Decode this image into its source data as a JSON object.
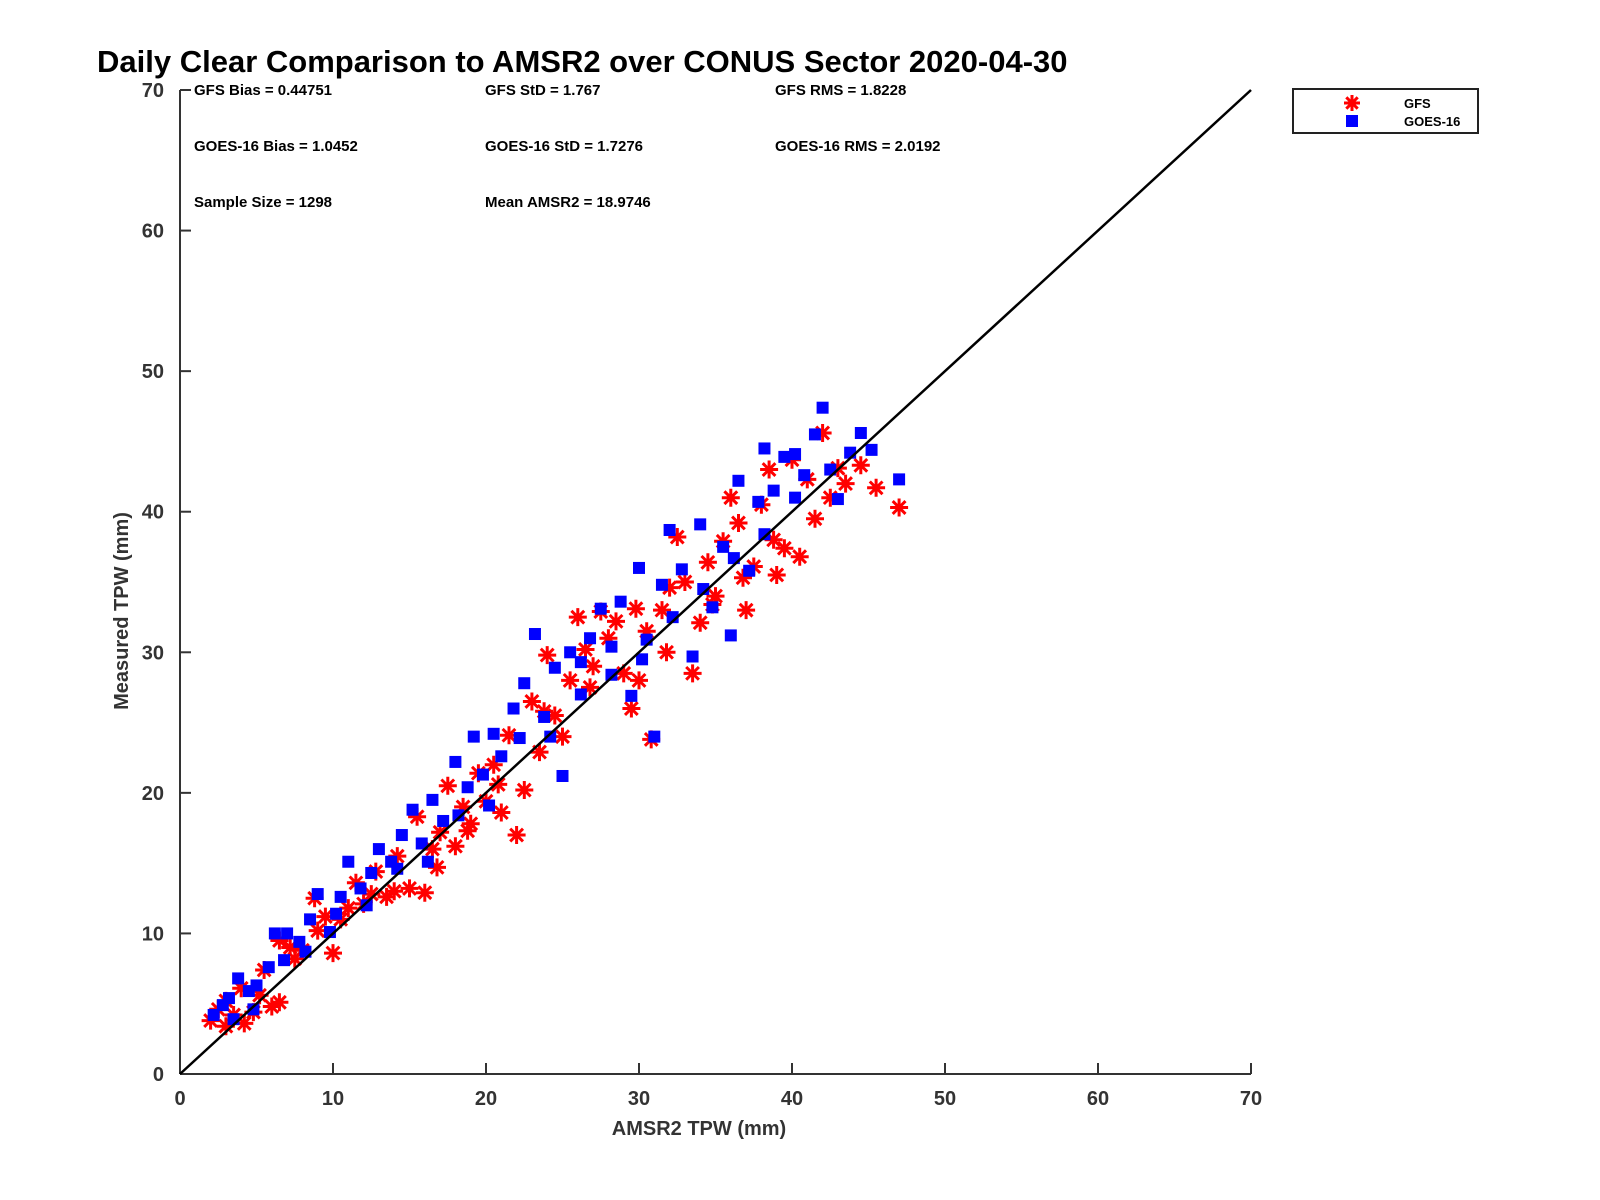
{
  "chart_data": {
    "type": "scatter",
    "title": "Daily Clear Comparison to AMSR2 over CONUS Sector 2020-04-30",
    "xlabel": "AMSR2 TPW (mm)",
    "ylabel": "Measured TPW (mm)",
    "xlim": [
      0,
      70
    ],
    "ylim": [
      0,
      70
    ],
    "xticks": [
      "0",
      "10",
      "20",
      "30",
      "40",
      "50",
      "60",
      "70"
    ],
    "yticks": [
      "0",
      "10",
      "20",
      "30",
      "40",
      "50",
      "60",
      "70"
    ],
    "grid": false,
    "legend_position": "outside-top-right",
    "reference_line": {
      "x": [
        0,
        70
      ],
      "y": [
        0,
        70
      ],
      "color": "#000000"
    },
    "stats": [
      [
        "GFS Bias = 0.44751",
        "GFS StD = 1.767",
        "GFS RMS = 1.8228"
      ],
      [
        "GOES-16 Bias = 1.0452",
        "GOES-16 StD = 1.7276",
        "GOES-16 RMS = 2.0192"
      ],
      [
        "Sample Size = 1298",
        "Mean AMSR2 = 18.9746"
      ]
    ],
    "series": [
      {
        "name": "GFS",
        "marker": "asterisk",
        "color": "#ff0000",
        "points": [
          [
            2.0,
            3.8
          ],
          [
            2.5,
            4.6
          ],
          [
            3.0,
            3.4
          ],
          [
            3.5,
            4.2
          ],
          [
            4.2,
            3.6
          ],
          [
            4.8,
            4.4
          ],
          [
            5.2,
            5.6
          ],
          [
            6.0,
            4.8
          ],
          [
            6.5,
            5.1
          ],
          [
            6.5,
            9.5
          ],
          [
            7.2,
            9.0
          ],
          [
            8.0,
            8.8
          ],
          [
            8.8,
            12.5
          ],
          [
            9.5,
            11.2
          ],
          [
            10.0,
            8.6
          ],
          [
            10.5,
            11.0
          ],
          [
            11.0,
            11.8
          ],
          [
            11.5,
            13.6
          ],
          [
            12.0,
            12.1
          ],
          [
            12.8,
            14.4
          ],
          [
            13.5,
            12.6
          ],
          [
            14.2,
            15.5
          ],
          [
            15.0,
            13.2
          ],
          [
            15.5,
            18.3
          ],
          [
            16.0,
            12.9
          ],
          [
            16.5,
            16.0
          ],
          [
            17.0,
            17.2
          ],
          [
            17.5,
            20.5
          ],
          [
            18.0,
            16.2
          ],
          [
            18.5,
            19.0
          ],
          [
            19.0,
            17.8
          ],
          [
            19.5,
            21.4
          ],
          [
            20.0,
            19.4
          ],
          [
            20.5,
            22.0
          ],
          [
            21.0,
            18.6
          ],
          [
            21.5,
            24.1
          ],
          [
            22.0,
            17.0
          ],
          [
            22.5,
            20.2
          ],
          [
            23.0,
            26.5
          ],
          [
            23.5,
            22.9
          ],
          [
            24.0,
            29.8
          ],
          [
            24.5,
            25.5
          ],
          [
            25.0,
            24.0
          ],
          [
            25.5,
            28.0
          ],
          [
            26.0,
            32.5
          ],
          [
            26.5,
            30.2
          ],
          [
            27.0,
            29.0
          ],
          [
            27.5,
            32.9
          ],
          [
            28.0,
            31.0
          ],
          [
            28.5,
            32.2
          ],
          [
            29.0,
            28.5
          ],
          [
            29.5,
            26.0
          ],
          [
            30.0,
            28.0
          ],
          [
            30.5,
            31.5
          ],
          [
            30.8,
            23.8
          ],
          [
            31.5,
            33.0
          ],
          [
            32.0,
            34.6
          ],
          [
            32.5,
            38.2
          ],
          [
            33.0,
            35.0
          ],
          [
            33.5,
            28.5
          ],
          [
            34.0,
            32.1
          ],
          [
            34.5,
            36.4
          ],
          [
            35.0,
            34.0
          ],
          [
            35.5,
            37.9
          ],
          [
            36.0,
            41.0
          ],
          [
            36.5,
            39.2
          ],
          [
            37.0,
            33.0
          ],
          [
            37.5,
            36.1
          ],
          [
            38.0,
            40.5
          ],
          [
            38.5,
            43.0
          ],
          [
            39.0,
            35.5
          ],
          [
            39.5,
            37.4
          ],
          [
            40.0,
            43.7
          ],
          [
            40.5,
            36.8
          ],
          [
            41.0,
            42.3
          ],
          [
            41.5,
            39.5
          ],
          [
            42.0,
            45.6
          ],
          [
            42.5,
            41.0
          ],
          [
            43.0,
            43.1
          ],
          [
            43.5,
            42.0
          ],
          [
            44.5,
            43.3
          ],
          [
            45.5,
            41.7
          ],
          [
            47.0,
            40.3
          ],
          [
            3.0,
            5.2
          ],
          [
            4.0,
            6.1
          ],
          [
            5.5,
            7.4
          ],
          [
            7.5,
            8.2
          ],
          [
            9.0,
            10.2
          ],
          [
            12.5,
            12.8
          ],
          [
            14.0,
            13.0
          ],
          [
            16.8,
            14.7
          ],
          [
            18.8,
            17.3
          ],
          [
            20.8,
            20.6
          ],
          [
            23.8,
            25.8
          ],
          [
            26.8,
            27.5
          ],
          [
            29.8,
            33.1
          ],
          [
            31.8,
            30.0
          ],
          [
            34.8,
            33.4
          ],
          [
            36.8,
            35.3
          ],
          [
            38.8,
            38.0
          ]
        ]
      },
      {
        "name": "GOES-16",
        "marker": "square",
        "color": "#0000ff",
        "points": [
          [
            2.2,
            4.2
          ],
          [
            2.8,
            4.9
          ],
          [
            3.2,
            5.4
          ],
          [
            3.8,
            6.8
          ],
          [
            4.5,
            5.9
          ],
          [
            5.0,
            6.3
          ],
          [
            5.8,
            7.6
          ],
          [
            6.2,
            10.0
          ],
          [
            7.0,
            10.0
          ],
          [
            7.8,
            9.4
          ],
          [
            8.5,
            11.0
          ],
          [
            9.0,
            12.8
          ],
          [
            9.8,
            10.1
          ],
          [
            10.5,
            12.6
          ],
          [
            11.0,
            15.1
          ],
          [
            11.8,
            13.2
          ],
          [
            12.5,
            14.3
          ],
          [
            13.0,
            16.0
          ],
          [
            13.8,
            15.1
          ],
          [
            14.5,
            17.0
          ],
          [
            15.2,
            18.8
          ],
          [
            15.8,
            16.4
          ],
          [
            16.5,
            19.5
          ],
          [
            17.2,
            18.0
          ],
          [
            18.0,
            22.2
          ],
          [
            18.8,
            20.4
          ],
          [
            19.2,
            24.0
          ],
          [
            19.8,
            21.3
          ],
          [
            20.5,
            24.2
          ],
          [
            21.0,
            22.6
          ],
          [
            21.8,
            26.0
          ],
          [
            22.5,
            27.8
          ],
          [
            23.2,
            31.3
          ],
          [
            23.8,
            25.4
          ],
          [
            24.5,
            28.9
          ],
          [
            25.0,
            21.2
          ],
          [
            25.5,
            30.0
          ],
          [
            26.2,
            29.3
          ],
          [
            26.8,
            31.0
          ],
          [
            27.5,
            33.1
          ],
          [
            28.2,
            28.4
          ],
          [
            28.8,
            33.6
          ],
          [
            29.5,
            26.9
          ],
          [
            30.0,
            36.0
          ],
          [
            30.5,
            30.9
          ],
          [
            31.0,
            24.0
          ],
          [
            31.5,
            34.8
          ],
          [
            32.0,
            38.7
          ],
          [
            32.8,
            35.9
          ],
          [
            33.5,
            29.7
          ],
          [
            34.0,
            39.1
          ],
          [
            34.8,
            33.2
          ],
          [
            35.5,
            37.5
          ],
          [
            36.0,
            31.2
          ],
          [
            36.5,
            42.2
          ],
          [
            37.2,
            35.8
          ],
          [
            37.8,
            40.7
          ],
          [
            38.2,
            44.5
          ],
          [
            38.8,
            41.5
          ],
          [
            39.5,
            43.9
          ],
          [
            40.2,
            44.1
          ],
          [
            40.8,
            42.6
          ],
          [
            41.5,
            45.5
          ],
          [
            42.0,
            47.4
          ],
          [
            42.5,
            43.0
          ],
          [
            43.0,
            40.9
          ],
          [
            43.8,
            44.2
          ],
          [
            44.5,
            45.6
          ],
          [
            45.2,
            44.4
          ],
          [
            47.0,
            42.3
          ],
          [
            3.5,
            3.9
          ],
          [
            4.8,
            4.6
          ],
          [
            6.8,
            8.1
          ],
          [
            8.2,
            8.7
          ],
          [
            10.2,
            11.4
          ],
          [
            12.2,
            12.0
          ],
          [
            14.2,
            14.6
          ],
          [
            16.2,
            15.1
          ],
          [
            18.2,
            18.4
          ],
          [
            20.2,
            19.1
          ],
          [
            22.2,
            23.9
          ],
          [
            24.2,
            24.0
          ],
          [
            26.2,
            27.0
          ],
          [
            28.2,
            30.4
          ],
          [
            30.2,
            29.5
          ],
          [
            32.2,
            32.5
          ],
          [
            34.2,
            34.5
          ],
          [
            36.2,
            36.7
          ],
          [
            38.2,
            38.4
          ],
          [
            40.2,
            41.0
          ]
        ]
      }
    ]
  }
}
